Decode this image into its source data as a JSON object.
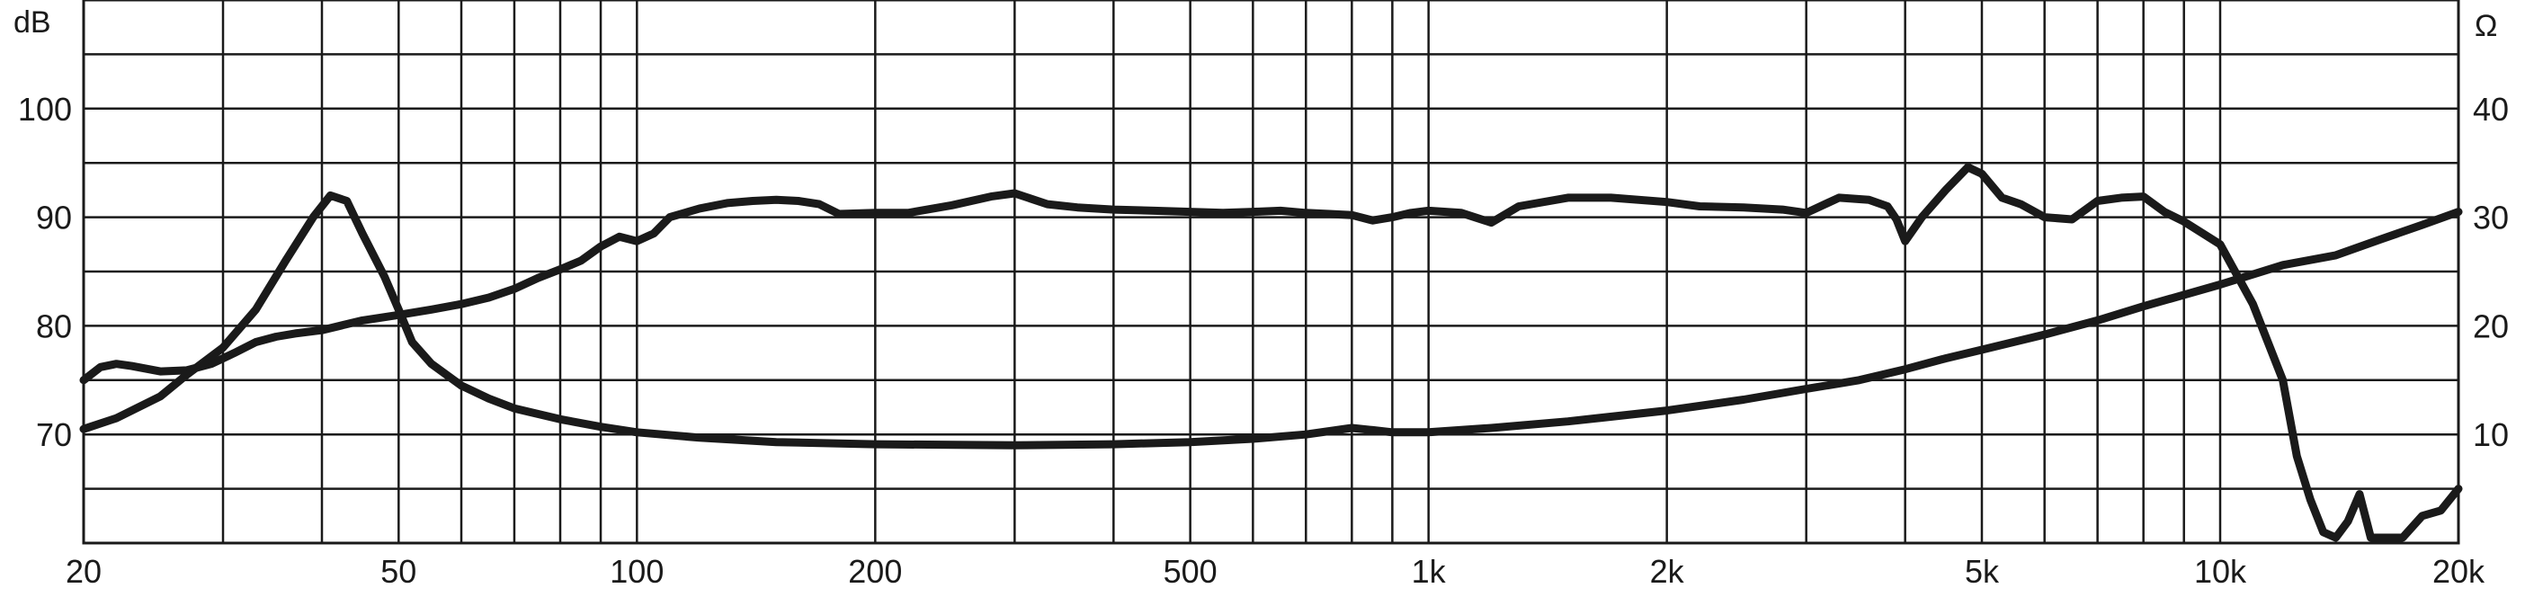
{
  "chart_data": {
    "type": "line",
    "x_scale": "log",
    "xlim": [
      20,
      20000
    ],
    "x_ticks": [
      20,
      50,
      100,
      200,
      500,
      1000,
      2000,
      5000,
      10000,
      20000
    ],
    "x_tick_labels": [
      "20",
      "50",
      "100",
      "200",
      "500",
      "1k",
      "2k",
      "5k",
      "10k",
      "20k"
    ],
    "y_left_unit": "dB",
    "y_left_lim": [
      60,
      110
    ],
    "y_left_ticks": [
      70,
      80,
      90,
      100
    ],
    "y_left_tick_labels": [
      "70",
      "80",
      "90",
      "100"
    ],
    "y_right_unit": "Ω",
    "y_right_lim": [
      0,
      50
    ],
    "y_right_ticks": [
      10,
      20,
      30,
      40
    ],
    "y_right_tick_labels": [
      "10",
      "20",
      "30",
      "40"
    ],
    "grid": true,
    "line_color": "#1a1a1a",
    "series": [
      {
        "axis": "left",
        "x": [
          20,
          21,
          22,
          23,
          25,
          27,
          29,
          31,
          33,
          35,
          37,
          40,
          45,
          50,
          55,
          60,
          65,
          70,
          75,
          80,
          85,
          90,
          95,
          100,
          105,
          110,
          120,
          130,
          140,
          150,
          160,
          170,
          180,
          200,
          220,
          250,
          280,
          300,
          330,
          360,
          400,
          450,
          500,
          550,
          600,
          650,
          700,
          750,
          800,
          850,
          900,
          950,
          1000,
          1100,
          1200,
          1300,
          1500,
          1700,
          2000,
          2200,
          2500,
          2800,
          3000,
          3300,
          3600,
          3800,
          3900,
          4000,
          4200,
          4500,
          4800,
          5000,
          5300,
          5600,
          6000,
          6500,
          7000,
          7500,
          8000,
          8500,
          9000,
          10000,
          11000,
          12000,
          12500,
          13000,
          13500,
          14000,
          14500,
          15000,
          15500,
          16000,
          17000,
          18000,
          19000,
          20000
        ],
        "values": [
          75,
          76.2,
          76.5,
          76.3,
          75.8,
          75.9,
          76.5,
          77.5,
          78.5,
          79,
          79.3,
          79.6,
          80.5,
          81,
          81.5,
          82,
          82.6,
          83.4,
          84.4,
          85.2,
          86,
          87.3,
          88.2,
          87.8,
          88.5,
          90,
          90.8,
          91.3,
          91.5,
          91.6,
          91.5,
          91.2,
          90.3,
          90.4,
          90.4,
          91.1,
          91.9,
          92.2,
          91.2,
          90.9,
          90.7,
          90.6,
          90.5,
          90.4,
          90.5,
          90.6,
          90.4,
          90.3,
          90.2,
          89.7,
          90,
          90.4,
          90.6,
          90.4,
          89.5,
          91,
          91.8,
          91.8,
          91.4,
          91,
          90.9,
          90.7,
          90.4,
          91.8,
          91.6,
          91,
          89.8,
          87.8,
          90,
          92.5,
          94.6,
          94,
          91.8,
          91.2,
          90,
          89.8,
          91.5,
          91.8,
          91.9,
          90.5,
          89.6,
          87.5,
          82,
          75,
          68,
          64,
          61,
          60.5,
          62,
          64.5,
          60.5,
          60.5,
          60.5,
          62.5,
          63,
          65
        ]
      },
      {
        "axis": "right",
        "x": [
          20,
          22,
          25,
          27,
          30,
          33,
          36,
          39,
          41,
          43,
          45,
          48,
          50,
          52,
          55,
          60,
          65,
          70,
          80,
          90,
          100,
          120,
          150,
          200,
          300,
          400,
          500,
          600,
          700,
          800,
          850,
          900,
          1000,
          1200,
          1500,
          2000,
          2500,
          3000,
          3500,
          4000,
          4500,
          5000,
          6000,
          7000,
          8000,
          10000,
          12000,
          14000,
          16000,
          18000,
          20000
        ],
        "values": [
          10.5,
          11.5,
          13.5,
          15.5,
          18,
          21.5,
          26,
          30,
          32,
          31.5,
          28.5,
          24.5,
          21.5,
          18.5,
          16.5,
          14.5,
          13.3,
          12.4,
          11.4,
          10.7,
          10.2,
          9.7,
          9.3,
          9.1,
          9,
          9.1,
          9.3,
          9.6,
          10,
          10.6,
          10.4,
          10.2,
          10.2,
          10.6,
          11.2,
          12.2,
          13.2,
          14.2,
          15,
          16,
          17,
          17.8,
          19.2,
          20.5,
          21.8,
          23.8,
          25.6,
          26.5,
          28,
          29.3,
          30.5
        ]
      }
    ]
  }
}
